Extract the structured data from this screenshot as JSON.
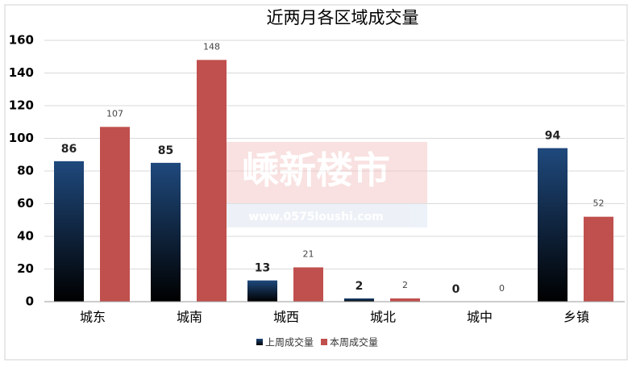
{
  "chart_data": {
    "type": "bar",
    "title": "近两月各区域成交量",
    "categories": [
      "城东",
      "城南",
      "城西",
      "城北",
      "城中",
      "乡镇"
    ],
    "series": [
      {
        "name": "上周成交量",
        "color": "#1f497d",
        "values": [
          86,
          85,
          13,
          2,
          0,
          94
        ]
      },
      {
        "name": "本周成交量",
        "color": "#c0504d",
        "values": [
          107,
          148,
          21,
          2,
          0,
          52
        ]
      }
    ],
    "ylim": [
      0,
      160
    ],
    "yticks": [
      0,
      20,
      40,
      60,
      80,
      100,
      120,
      140,
      160
    ],
    "grid": true,
    "legend": "bottom",
    "watermark": {
      "title": "嵊新楼市",
      "url": "www.0575loushi.com"
    }
  }
}
